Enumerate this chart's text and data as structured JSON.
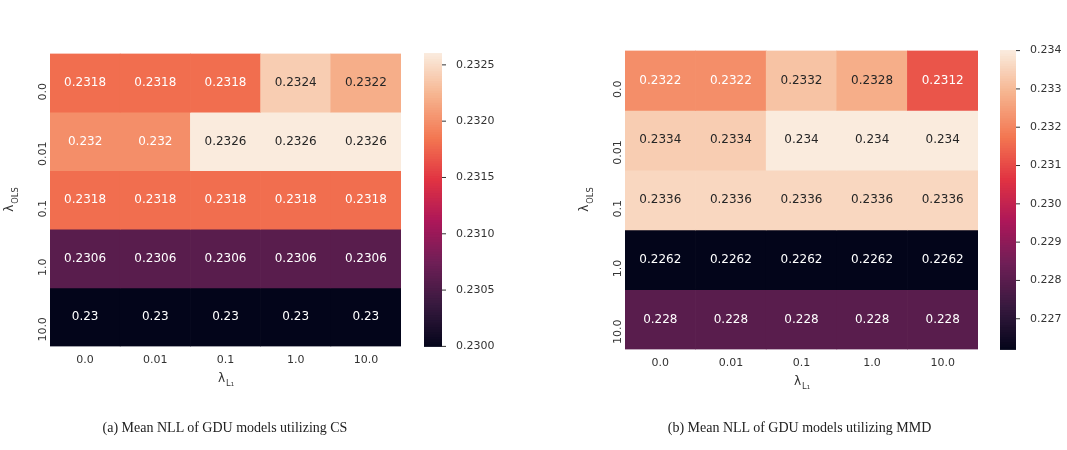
{
  "chart_data": [
    {
      "type": "heatmap",
      "xlabel": "λ$_{L₁}$",
      "ylabel": "λ$_{OLS}$",
      "categories": [
        "0.0",
        "0.01",
        "0.1",
        "1.0",
        "10.0"
      ],
      "y_categories": [
        "0.0",
        "0.01",
        "0.1",
        "1.0",
        "10.0"
      ],
      "cells": [
        [
          0.2318,
          0.2318,
          0.2318,
          0.2324,
          0.2322
        ],
        [
          0.232,
          0.232,
          0.2326,
          0.2326,
          0.2326
        ],
        [
          0.2318,
          0.2318,
          0.2318,
          0.2318,
          0.2318
        ],
        [
          0.2306,
          0.2306,
          0.2306,
          0.2306,
          0.2306
        ],
        [
          0.23,
          0.23,
          0.23,
          0.23,
          0.23
        ]
      ],
      "clim": [
        0.23,
        0.2326
      ],
      "cticks": [
        {
          "value": 0.23,
          "label": "0.2300"
        },
        {
          "value": 0.2305,
          "label": "0.2305"
        },
        {
          "value": 0.231,
          "label": "0.2310"
        },
        {
          "value": 0.2315,
          "label": "0.2315"
        },
        {
          "value": 0.232,
          "label": "0.2320"
        },
        {
          "value": 0.2325,
          "label": "0.2325"
        }
      ],
      "data_labels": true,
      "annotations": [
        "(a) Mean NLL of GDU models utilizing CS"
      ]
    },
    {
      "type": "heatmap",
      "xlabel": "λ$_{L₁}$",
      "ylabel": "λ$_{OLS}$",
      "categories": [
        "0.0",
        "0.01",
        "0.1",
        "1.0",
        "10.0"
      ],
      "y_categories": [
        "0.0",
        "0.01",
        "0.1",
        "1.0",
        "10.0"
      ],
      "cells": [
        [
          0.2322,
          0.2322,
          0.2332,
          0.2328,
          0.2312
        ],
        [
          0.2334,
          0.2334,
          0.234,
          0.234,
          0.234
        ],
        [
          0.2336,
          0.2336,
          0.2336,
          0.2336,
          0.2336
        ],
        [
          0.2262,
          0.2262,
          0.2262,
          0.2262,
          0.2262
        ],
        [
          0.228,
          0.228,
          0.228,
          0.228,
          0.228
        ]
      ],
      "clim": [
        0.2262,
        0.234
      ],
      "cticks": [
        0.227,
        0.228,
        0.229,
        {
          "value": 0.23,
          "label": "0.230"
        },
        0.231,
        0.232,
        0.233,
        0.234
      ],
      "data_labels": true,
      "annotations": [
        "(b) Mean NLL of GDU models utilizing MMD"
      ]
    }
  ]
}
